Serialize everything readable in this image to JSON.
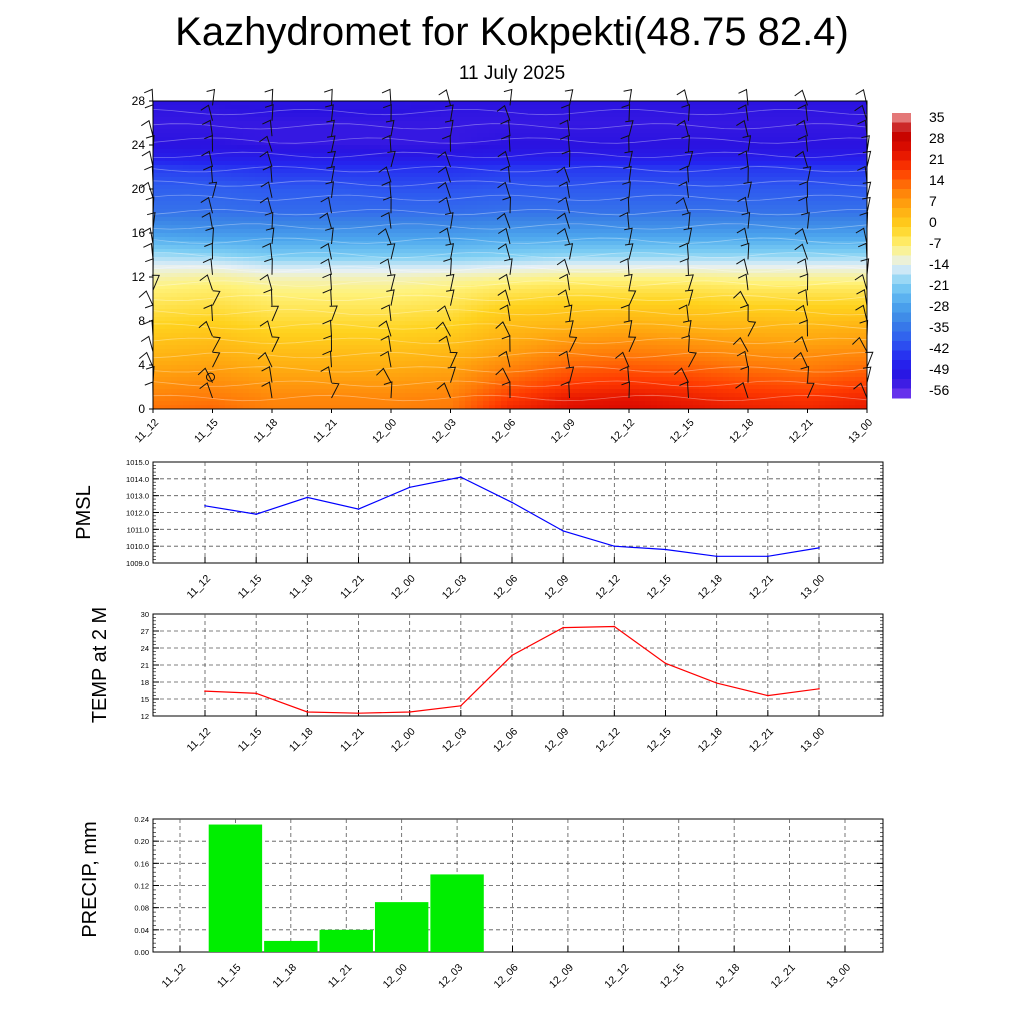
{
  "page": {
    "title": "Kazhydromet for Kokpekti(48.75 82.4)",
    "subtitle": "11 July 2025"
  },
  "chart_data": [
    {
      "type": "heatmap",
      "x_tick_labels": [
        "11_12",
        "11_15",
        "11_18",
        "11_21",
        "12_00",
        "12_03",
        "12_06",
        "12_09",
        "12_12",
        "12_15",
        "12_18",
        "12_21",
        "13_00"
      ],
      "y_ticks": [
        0,
        4,
        8,
        12,
        16,
        20,
        24,
        28
      ],
      "ylim": [
        0,
        28
      ],
      "colorbar_labels": [
        "35",
        "28",
        "21",
        "14",
        "7",
        "0",
        "-7",
        "-14",
        "-21",
        "-28",
        "-35",
        "-42",
        "-49",
        "-56"
      ],
      "colorbar_range": [
        -63,
        42
      ],
      "colormap": [
        {
          "v": -63,
          "color": "#7a3cf0"
        },
        {
          "v": -56,
          "color": "#2a12e0"
        },
        {
          "v": -49,
          "color": "#2426f0"
        },
        {
          "v": -42,
          "color": "#2e5af0"
        },
        {
          "v": -35,
          "color": "#3a82e6"
        },
        {
          "v": -28,
          "color": "#4ea8ee"
        },
        {
          "v": -21,
          "color": "#80d0f4"
        },
        {
          "v": -14,
          "color": "#e6f0f6"
        },
        {
          "v": -7,
          "color": "#fff27a"
        },
        {
          "v": 0,
          "color": "#ffd21e"
        },
        {
          "v": 7,
          "color": "#ffaa10"
        },
        {
          "v": 14,
          "color": "#ff7a08"
        },
        {
          "v": 21,
          "color": "#ff3a00"
        },
        {
          "v": 28,
          "color": "#e00e00"
        },
        {
          "v": 35,
          "color": "#c00000"
        },
        {
          "v": 42,
          "color": "#f0a0a0"
        }
      ],
      "column_profiles": {
        "levels": [
          0,
          1,
          2,
          3,
          4,
          5,
          6,
          7,
          8,
          9,
          10,
          11,
          12,
          13,
          14,
          16,
          18,
          20,
          22,
          23,
          24,
          26,
          28
        ],
        "columns": [
          [
            15,
            13,
            11,
            9,
            7,
            5,
            3,
            1,
            -1,
            -3,
            -5,
            -7,
            -10,
            -14,
            -19,
            -30,
            -38,
            -41,
            -46,
            -52,
            -56,
            -57,
            -56
          ],
          [
            16,
            14,
            12,
            10,
            8,
            6,
            4,
            2,
            0,
            -2,
            -4,
            -6,
            -9,
            -14,
            -20,
            -31,
            -38,
            -41,
            -47,
            -53,
            -56,
            -57,
            -56
          ],
          [
            13,
            12,
            10,
            8,
            6,
            4,
            2,
            0,
            -2,
            -4,
            -6,
            -8,
            -11,
            -16,
            -22,
            -31,
            -39,
            -42,
            -48,
            -53,
            -57,
            -57,
            -55
          ],
          [
            13,
            12,
            10,
            8,
            6,
            4,
            2,
            0,
            -2,
            -4,
            -6,
            -8,
            -11,
            -16,
            -22,
            -31,
            -39,
            -42,
            -48,
            -53,
            -57,
            -57,
            -55
          ],
          [
            13,
            12,
            10,
            8,
            6,
            4,
            2,
            0,
            -2,
            -4,
            -6,
            -8,
            -11,
            -16,
            -22,
            -31,
            -39,
            -43,
            -48,
            -54,
            -57,
            -57,
            -55
          ],
          [
            14,
            13,
            11,
            9,
            7,
            5,
            3,
            1,
            -1,
            -3,
            -5,
            -7,
            -10,
            -16,
            -22,
            -31,
            -39,
            -43,
            -48,
            -54,
            -57,
            -57,
            -56
          ],
          [
            24,
            21,
            18,
            15,
            12,
            9,
            7,
            5,
            3,
            1,
            -2,
            -5,
            -9,
            -15,
            -21,
            -30,
            -38,
            -42,
            -47,
            -53,
            -56,
            -57,
            -56
          ],
          [
            28,
            26,
            22,
            19,
            16,
            13,
            10,
            7,
            4,
            2,
            -1,
            -4,
            -8,
            -14,
            -20,
            -30,
            -38,
            -42,
            -47,
            -53,
            -56,
            -57,
            -56
          ],
          [
            29,
            27,
            23,
            20,
            17,
            14,
            11,
            8,
            5,
            2,
            -1,
            -4,
            -8,
            -14,
            -20,
            -30,
            -38,
            -42,
            -47,
            -53,
            -56,
            -57,
            -56
          ],
          [
            27,
            25,
            22,
            19,
            16,
            13,
            10,
            7,
            4,
            2,
            -1,
            -4,
            -8,
            -14,
            -20,
            -30,
            -38,
            -42,
            -47,
            -53,
            -56,
            -57,
            -56
          ],
          [
            25,
            23,
            20,
            17,
            14,
            11,
            9,
            6,
            4,
            1,
            -2,
            -5,
            -9,
            -14,
            -20,
            -30,
            -38,
            -42,
            -47,
            -53,
            -56,
            -57,
            -56
          ],
          [
            24,
            22,
            19,
            16,
            13,
            11,
            8,
            6,
            3,
            1,
            -2,
            -5,
            -9,
            -14,
            -20,
            -30,
            -38,
            -42,
            -47,
            -53,
            -56,
            -57,
            -56
          ],
          [
            26,
            24,
            21,
            18,
            15,
            12,
            9,
            7,
            4,
            1,
            -2,
            -5,
            -9,
            -14,
            -20,
            -30,
            -38,
            -42,
            -47,
            -53,
            -56,
            -57,
            -56
          ]
        ]
      },
      "wind_barbs": true
    },
    {
      "type": "line",
      "ylabel": "PMSL",
      "x": [
        "11_12",
        "11_15",
        "11_18",
        "11_21",
        "12_00",
        "12_03",
        "12_06",
        "12_09",
        "12_12",
        "12_15",
        "12_18",
        "12_21",
        "13_00"
      ],
      "ylim": [
        1009.0,
        1015.0
      ],
      "y_tick_labels": [
        "1009.0",
        "1010.0",
        "1011.0",
        "1012.0",
        "1013.0",
        "1014.0",
        "1015.0"
      ],
      "series": [
        {
          "values": [
            1012.4,
            1011.9,
            1012.9,
            1012.2,
            1013.5,
            1014.1,
            1012.6,
            1010.9,
            1010.0,
            1009.8,
            1009.4,
            1009.4,
            1009.9
          ],
          "color": "#0000ff"
        }
      ]
    },
    {
      "type": "line",
      "ylabel": "TEMP at 2 M",
      "x": [
        "11_12",
        "11_15",
        "11_18",
        "11_21",
        "12_00",
        "12_03",
        "12_06",
        "12_09",
        "12_12",
        "12_15",
        "12_18",
        "12_21",
        "13_00"
      ],
      "ylim": [
        12,
        30
      ],
      "y_tick_labels": [
        "12",
        "15",
        "18",
        "21",
        "24",
        "27",
        "30"
      ],
      "series": [
        {
          "values": [
            16.4,
            16.0,
            12.7,
            12.5,
            12.7,
            13.8,
            22.7,
            27.6,
            27.8,
            21.3,
            17.8,
            15.6,
            16.8
          ],
          "color": "#ff0000"
        }
      ]
    },
    {
      "type": "bar",
      "ylabel": "PRECIP, mm",
      "x_tick_labels": [
        "11_12",
        "11_15",
        "11_18",
        "11_21",
        "12_00",
        "12_03",
        "12_06",
        "12_09",
        "12_12",
        "12_15",
        "12_18",
        "12_21",
        "13_00"
      ],
      "ylim": [
        0,
        0.24
      ],
      "y_tick_labels": [
        "0.00",
        "0.04",
        "0.08",
        "0.12",
        "0.16",
        "0.20",
        "0.24"
      ],
      "values": [
        0.23,
        0.02,
        0.04,
        0.09,
        0.14,
        0,
        0,
        0,
        0,
        0,
        0,
        0
      ],
      "color": "#00ee00"
    }
  ]
}
